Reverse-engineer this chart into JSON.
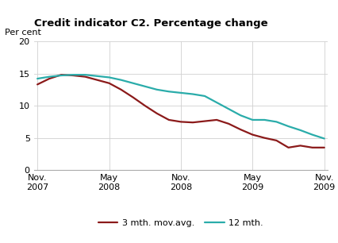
{
  "title": "Credit indicator C2. Percentage change",
  "ylabel": "Per cent",
  "ylim": [
    0,
    20
  ],
  "yticks": [
    0,
    5,
    10,
    15,
    20
  ],
  "background_color": "#ffffff",
  "grid_color": "#d0d0d0",
  "line1_label": "3 mth. mov.avg.",
  "line2_label": "12 mth.",
  "line1_color": "#8b1a1a",
  "line2_color": "#2aacaa",
  "x_tick_labels": [
    "Nov.\n2007",
    "May\n2008",
    "Nov.\n2008",
    "May\n2009",
    "Nov.\n2009"
  ],
  "x_tick_positions": [
    0,
    6,
    12,
    18,
    24
  ],
  "xlim": [
    -0.3,
    24.3
  ],
  "line1_x": [
    0,
    1,
    2,
    3,
    4,
    5,
    6,
    7,
    8,
    9,
    10,
    11,
    12,
    13,
    14,
    15,
    16,
    17,
    18,
    19,
    20,
    21,
    22,
    23,
    24
  ],
  "line1_y": [
    13.3,
    14.2,
    14.8,
    14.7,
    14.5,
    14.0,
    13.5,
    12.5,
    11.3,
    10.0,
    8.8,
    7.8,
    7.5,
    7.4,
    7.6,
    7.8,
    7.2,
    6.3,
    5.5,
    5.0,
    4.6,
    3.5,
    3.8,
    3.5,
    3.5
  ],
  "line2_x": [
    0,
    1,
    2,
    3,
    4,
    5,
    6,
    7,
    8,
    9,
    10,
    11,
    12,
    13,
    14,
    15,
    16,
    17,
    18,
    19,
    20,
    21,
    22,
    23,
    24
  ],
  "line2_y": [
    14.2,
    14.5,
    14.7,
    14.8,
    14.8,
    14.6,
    14.4,
    14.0,
    13.5,
    13.0,
    12.5,
    12.2,
    12.0,
    11.8,
    11.5,
    10.5,
    9.5,
    8.5,
    7.8,
    7.8,
    7.5,
    6.8,
    6.2,
    5.5,
    4.9
  ],
  "title_fontsize": 9.5,
  "tick_fontsize": 8,
  "legend_fontsize": 8
}
